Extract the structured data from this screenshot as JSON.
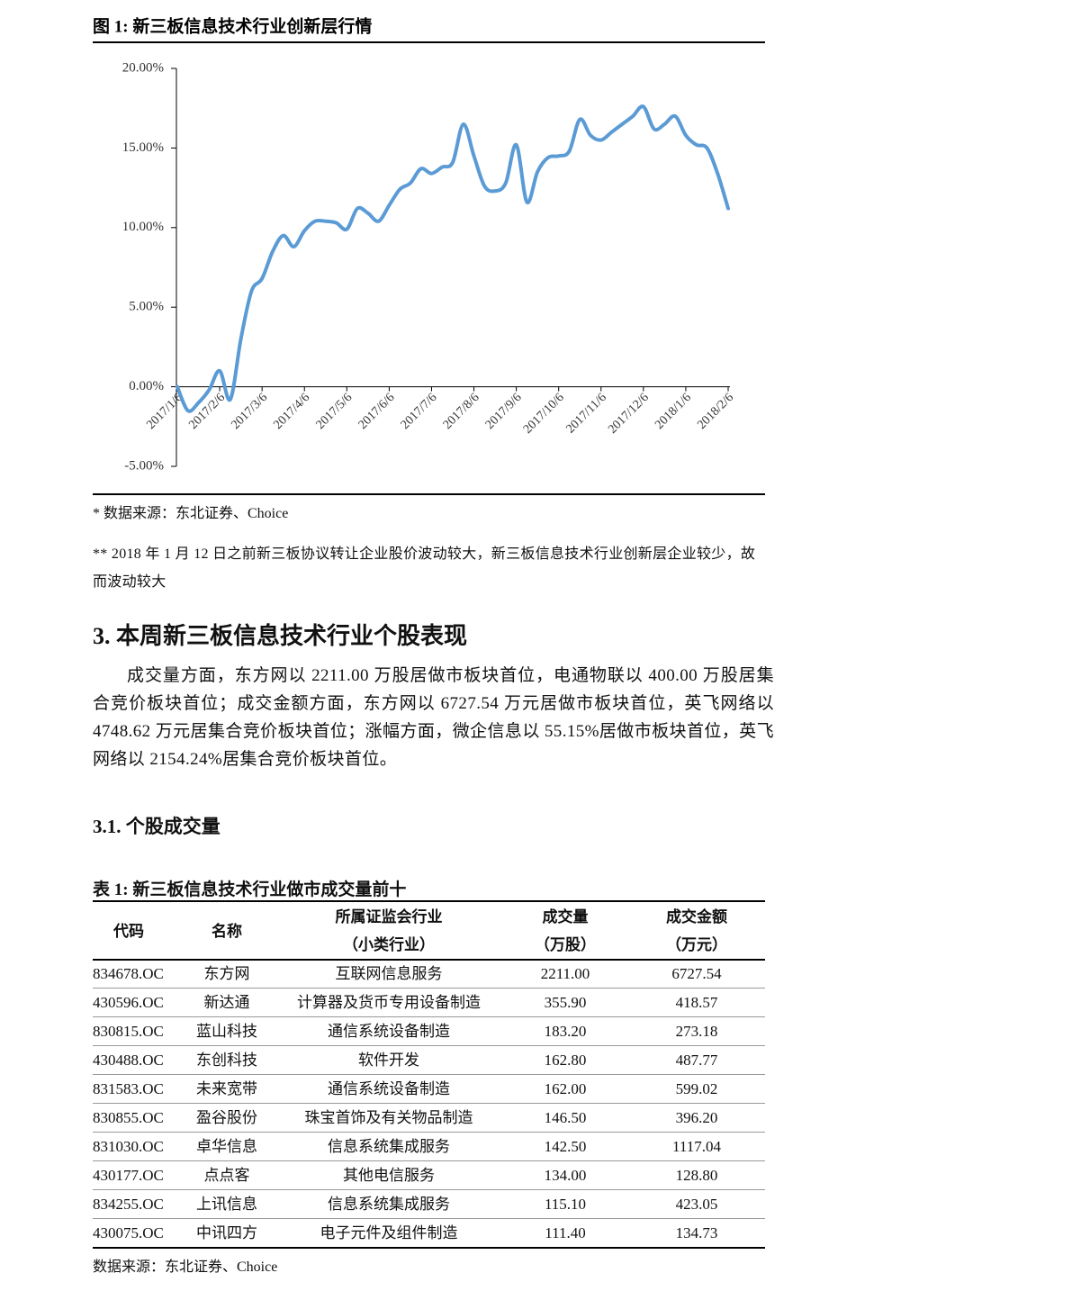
{
  "chart_data": {
    "type": "line",
    "title": "图 1:  新三板信息技术行业创新层行情",
    "categories": [
      "2017/1/6",
      null,
      null,
      null,
      "2017/2/6",
      null,
      null,
      null,
      "2017/3/6",
      null,
      null,
      null,
      "2017/4/6",
      null,
      null,
      null,
      "2017/5/6",
      null,
      null,
      null,
      "2017/6/6",
      null,
      null,
      null,
      "2017/7/6",
      null,
      null,
      null,
      "2017/8/6",
      null,
      null,
      null,
      "2017/9/6",
      null,
      null,
      null,
      "2017/10/6",
      null,
      null,
      null,
      "2017/11/6",
      null,
      null,
      null,
      "2017/12/6",
      null,
      null,
      null,
      "2018/1/6",
      null,
      null,
      null,
      "2018/2/6"
    ],
    "values": [
      0.0,
      -1.5,
      -1.0,
      -0.2,
      1.0,
      -0.8,
      3.0,
      6.0,
      6.8,
      8.5,
      9.5,
      8.8,
      9.8,
      10.4,
      10.4,
      10.3,
      9.9,
      11.2,
      10.9,
      10.4,
      11.4,
      12.4,
      12.8,
      13.7,
      13.4,
      13.8,
      14.1,
      16.5,
      14.5,
      12.6,
      12.3,
      12.8,
      15.2,
      11.6,
      13.5,
      14.4,
      14.5,
      14.8,
      16.8,
      15.8,
      15.5,
      16.0,
      16.5,
      17.0,
      17.6,
      16.2,
      16.5,
      17.0,
      15.8,
      15.2,
      15.0,
      13.4,
      11.2
    ],
    "color": "#5b9bd5",
    "ylim": [
      -5,
      20
    ],
    "yticks": [
      {
        "value": -5,
        "label": "-5.00%"
      },
      {
        "value": 0,
        "label": "0.00%"
      },
      {
        "value": 5,
        "label": "5.00%"
      },
      {
        "value": 10,
        "label": "10.00%"
      },
      {
        "value": 15,
        "label": "15.00%"
      },
      {
        "value": 20,
        "label": "20.00%"
      }
    ]
  },
  "notes": [
    "*    数据来源：东北证券、Choice",
    "** 2018 年 1 月 12 日之前新三板协议转让企业股价波动较大，新三板信息技术行业创新层企业较少，故而波动较大"
  ],
  "section": {
    "heading": "3.  本周新三板信息技术行业个股表现",
    "paragraph": "成交量方面，东方网以 2211.00 万股居做市板块首位，电通物联以 400.00 万股居集合竞价板块首位；成交金额方面，东方网以 6727.54 万元居做市板块首位，英飞网络以 4748.62 万元居集合竞价板块首位；涨幅方面，微企信息以 55.15%居做市板块首位，英飞网络以 2154.24%居集合竞价板块首位。"
  },
  "subsection": "3.1.  个股成交量",
  "table": {
    "caption": "表 1:  新三板信息技术行业做市成交量前十",
    "header": [
      [
        "代码"
      ],
      [
        "名称"
      ],
      [
        "所属证监会行业",
        "（小类行业）"
      ],
      [
        "成交量",
        "（万股）"
      ],
      [
        "成交金额",
        "（万元）"
      ]
    ],
    "rows": [
      [
        "834678.OC",
        "东方网",
        "互联网信息服务",
        "2211.00",
        "6727.54"
      ],
      [
        "430596.OC",
        "新达通",
        "计算器及货币专用设备制造",
        "355.90",
        "418.57"
      ],
      [
        "830815.OC",
        "蓝山科技",
        "通信系统设备制造",
        "183.20",
        "273.18"
      ],
      [
        "430488.OC",
        "东创科技",
        "软件开发",
        "162.80",
        "487.77"
      ],
      [
        "831583.OC",
        "未来宽带",
        "通信系统设备制造",
        "162.00",
        "599.02"
      ],
      [
        "830855.OC",
        "盈谷股份",
        "珠宝首饰及有关物品制造",
        "146.50",
        "396.20"
      ],
      [
        "831030.OC",
        "卓华信息",
        "信息系统集成服务",
        "142.50",
        "1117.04"
      ],
      [
        "430177.OC",
        "点点客",
        "其他电信服务",
        "134.00",
        "128.80"
      ],
      [
        "834255.OC",
        "上讯信息",
        "信息系统集成服务",
        "115.10",
        "423.05"
      ],
      [
        "430075.OC",
        "中讯四方",
        "电子元件及组件制造",
        "111.40",
        "134.73"
      ]
    ]
  },
  "source": "数据来源：东北证券、Choice"
}
